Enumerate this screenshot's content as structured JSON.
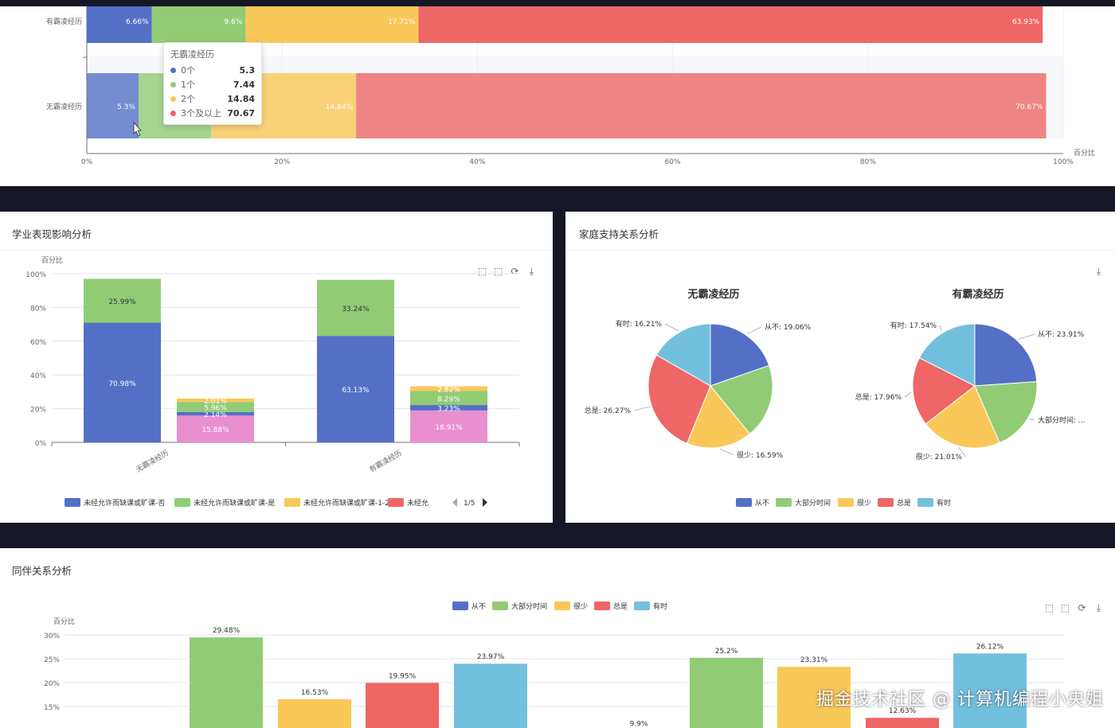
{
  "colors": {
    "blue": "#5470c6",
    "green": "#91cc75",
    "yellow": "#fac858",
    "red": "#ee6666",
    "sky": "#73c0de",
    "pink": "#e98fd0"
  },
  "top_panel": {
    "chart_data": {
      "type": "bar",
      "orientation": "horizontal-stacked",
      "categories": [
        "有霸凌经历",
        "无霸凌经历"
      ],
      "series": [
        {
          "name": "0个",
          "values": [
            6.66,
            5.3
          ]
        },
        {
          "name": "1个",
          "values": [
            9.6,
            7.44
          ]
        },
        {
          "name": "2个",
          "values": [
            17.71,
            14.84
          ]
        },
        {
          "name": "3个及以上",
          "values": [
            63.93,
            70.67
          ]
        }
      ],
      "data_labels": [
        [
          "6.66%",
          "9.6%",
          "17.71%",
          "63.93%"
        ],
        [
          "5.3%",
          "",
          "14.84%",
          "70.67%"
        ]
      ],
      "x_ticks": [
        "0%",
        "20%",
        "40%",
        "60%",
        "80%",
        "100%"
      ],
      "xlabel": "百分比",
      "xlim": [
        0,
        100
      ]
    },
    "tooltip": {
      "title": "无霸凌经历",
      "rows": [
        {
          "name": "0个",
          "value": "5.3"
        },
        {
          "name": "1个",
          "value": "7.44"
        },
        {
          "name": "2个",
          "value": "14.84"
        },
        {
          "name": "3个及以上",
          "value": "70.67"
        }
      ]
    }
  },
  "academic_panel": {
    "title": "学业表现影响分析",
    "chart_data": {
      "type": "bar",
      "orientation": "vertical-stacked",
      "categories": [
        "无霸凌经历",
        "有霸凌经历"
      ],
      "ylabel": "百分比",
      "y_ticks": [
        "100%",
        "80%",
        "60%",
        "40%",
        "20%",
        "0%"
      ],
      "ylim": [
        0,
        100
      ],
      "stacks": [
        {
          "category": "无霸凌经历",
          "segments": [
            {
              "value": 70.98,
              "label": "70.98%",
              "color": "blue"
            },
            {
              "value": 25.99,
              "label": "25.99%",
              "color": "green"
            }
          ]
        },
        {
          "category": "无霸凌经历",
          "segments": [
            {
              "value": 15.88,
              "label": "15.88%",
              "color": "pink"
            },
            {
              "value": 2.14,
              "label": "2.14%",
              "color": "blue"
            },
            {
              "value": 5.96,
              "label": "5.96%",
              "color": "green"
            },
            {
              "value": 2.01,
              "label": "2.01%",
              "color": "yellow"
            }
          ]
        },
        {
          "category": "有霸凌经历",
          "segments": [
            {
              "value": 63.13,
              "label": "63.13%",
              "color": "blue"
            },
            {
              "value": 33.24,
              "label": "33.24%",
              "color": "green"
            }
          ]
        },
        {
          "category": "有霸凌经历",
          "segments": [
            {
              "value": 18.91,
              "label": "18.91%",
              "color": "pink"
            },
            {
              "value": 3.23,
              "label": "3.23%",
              "color": "blue"
            },
            {
              "value": 8.29,
              "label": "8.29%",
              "color": "green"
            },
            {
              "value": 2.82,
              "label": "2.82%",
              "color": "yellow"
            }
          ]
        }
      ],
      "legend": [
        {
          "name": "未经允许而缺课或旷课-否",
          "color": "blue"
        },
        {
          "name": "未经允许而缺课或旷课-是",
          "color": "green"
        },
        {
          "name": "未经允许而缺课或旷课-1-2天",
          "color": "yellow"
        },
        {
          "name": "未经允",
          "color": "red"
        }
      ],
      "legend_page": "1/5"
    }
  },
  "family_panel": {
    "title": "家庭支持关系分析",
    "chart_data": {
      "type": "pie",
      "pies": [
        {
          "title": "无霸凌经历",
          "slices": [
            {
              "name": "从不",
              "value": 19.06,
              "label": "从不: 19.06%",
              "color": "blue"
            },
            {
              "name": "大部分时间",
              "value": 18.81,
              "label": "",
              "color": "green"
            },
            {
              "name": "很少",
              "value": 16.59,
              "label": "很少: 16.59%",
              "color": "yellow"
            },
            {
              "name": "总是",
              "value": 26.27,
              "label": "总是: 26.27%",
              "color": "red"
            },
            {
              "name": "有时",
              "value": 16.21,
              "label": "有时: 16.21%",
              "color": "sky"
            }
          ]
        },
        {
          "title": "有霸凌经历",
          "slices": [
            {
              "name": "从不",
              "value": 23.91,
              "label": "从不: 23.91%",
              "color": "blue"
            },
            {
              "name": "大部分时间",
              "value": 19.58,
              "label": "大部分时间: ...",
              "color": "green"
            },
            {
              "name": "很少",
              "value": 21.01,
              "label": "很少: 21.01%",
              "color": "yellow"
            },
            {
              "name": "总是",
              "value": 17.96,
              "label": "总是: 17.96%",
              "color": "red"
            },
            {
              "name": "有时",
              "value": 17.54,
              "label": "有时: 17.54%",
              "color": "sky"
            }
          ]
        }
      ],
      "legend": [
        {
          "name": "从不",
          "color": "blue"
        },
        {
          "name": "大部分时间",
          "color": "green"
        },
        {
          "name": "很少",
          "color": "yellow"
        },
        {
          "name": "总是",
          "color": "red"
        },
        {
          "name": "有时",
          "color": "sky"
        }
      ]
    }
  },
  "peer_panel": {
    "title": "同伴关系分析",
    "chart_data": {
      "type": "bar",
      "ylabel": "百分比",
      "y_ticks": [
        "30%",
        "25%",
        "20%",
        "15%"
      ],
      "ylim": [
        0,
        30
      ],
      "legend": [
        {
          "name": "从不",
          "color": "blue"
        },
        {
          "name": "大部分时间",
          "color": "green"
        },
        {
          "name": "很少",
          "color": "yellow"
        },
        {
          "name": "总是",
          "color": "red"
        },
        {
          "name": "有时",
          "color": "sky"
        }
      ],
      "groups": [
        {
          "bars": [
            {
              "series": "大部分时间",
              "value": 29.48,
              "label": "29.48%",
              "color": "green"
            },
            {
              "series": "很少",
              "value": 16.53,
              "label": "16.53%",
              "color": "yellow"
            },
            {
              "series": "总是",
              "value": 19.95,
              "label": "19.95%",
              "color": "red"
            },
            {
              "series": "有时",
              "value": 23.97,
              "label": "23.97%",
              "color": "sky"
            }
          ]
        },
        {
          "bars": [
            {
              "series": "从不",
              "value": 9.9,
              "label": "9.9%",
              "color": "blue"
            },
            {
              "series": "大部分时间",
              "value": 25.2,
              "label": "25.2%",
              "color": "green"
            },
            {
              "series": "很少",
              "value": 23.31,
              "label": "23.31%",
              "color": "yellow"
            },
            {
              "series": "总是",
              "value": 12.63,
              "label": "12.63%",
              "color": "red"
            },
            {
              "series": "有时",
              "value": 26.12,
              "label": "26.12%",
              "color": "sky"
            }
          ]
        }
      ]
    }
  },
  "watermark": "掘金技术社区 @ 计算机编程小央姐"
}
